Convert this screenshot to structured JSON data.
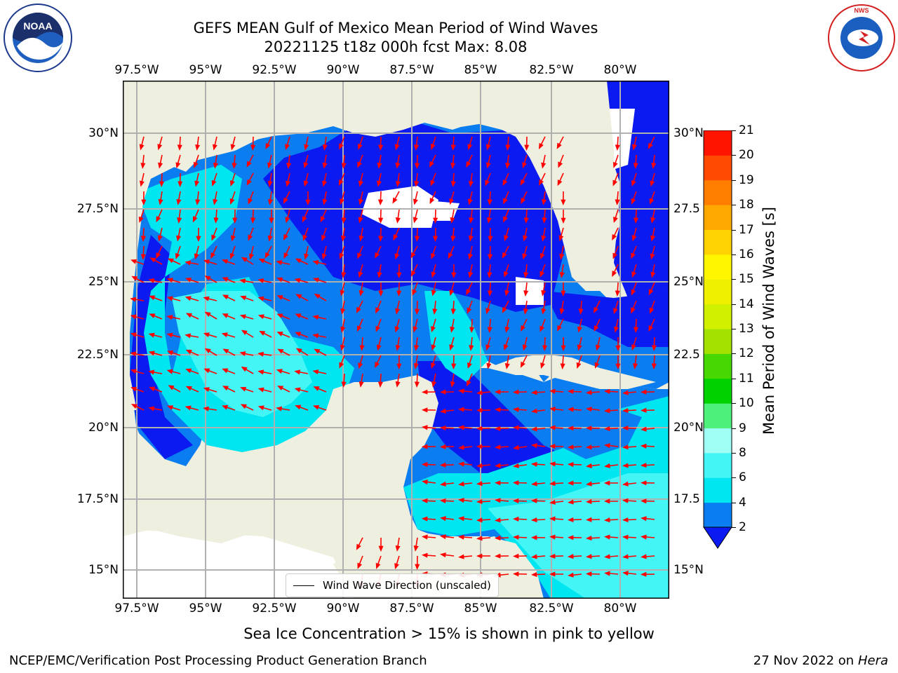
{
  "title_line1": "GEFS MEAN Gulf of Mexico Mean Period of Wind Waves",
  "title_line2": "20221125 t18z 000h fcst   Max: 8.08",
  "lon_ticks": [
    "97.5°W",
    "95°W",
    "92.5°W",
    "90°W",
    "87.5°W",
    "85°W",
    "82.5°W",
    "80°W"
  ],
  "lat_ticks_left": [
    "30°N",
    "27.5°N",
    "25°N",
    "22.5°N",
    "20°N",
    "17.5°N",
    "15°N"
  ],
  "lat_ticks_right": [
    "30°N",
    "27.5",
    "25°N",
    "22.5",
    "20°N",
    "17.5",
    "15°N"
  ],
  "legend": {
    "label": "Wind Wave Direction (unscaled)"
  },
  "colorbar": {
    "label": "Mean Period of Wind Waves [s]",
    "ticks": [
      "2",
      "4",
      "6",
      "8",
      "9",
      "10",
      "11",
      "12",
      "13",
      "14",
      "15",
      "16",
      "17",
      "18",
      "19",
      "20",
      "21"
    ],
    "colors": [
      "#0a1af0",
      "#0a7df0",
      "#00e6f0",
      "#44f5f5",
      "#9ffff5",
      "#4cf07a",
      "#00d200",
      "#46d800",
      "#a3e100",
      "#d0f000",
      "#eef000",
      "#fff600",
      "#ffd200",
      "#ffa800",
      "#ff7e00",
      "#ff4a00",
      "#ff1400"
    ]
  },
  "subtitle": "Sea Ice Concentration > 15% is shown in pink to yellow",
  "footer_left": "NCEP/EMC/Verification Post Processing Product Generation Branch",
  "footer_right_date": "27 Nov 2022 on",
  "footer_right_host": "Hera",
  "logos": {
    "left": "NOAA",
    "right": "NATIONAL WEATHER SERVICE"
  },
  "map_colors": {
    "land": "#efefdf",
    "period_2_4": "#0a7df0",
    "period_lt2": "#0a1af0",
    "period_4_6": "#00e6f0",
    "period_6_8": "#44f5f5",
    "arrows": "#ff0000",
    "grid": "#b0b0b0"
  }
}
